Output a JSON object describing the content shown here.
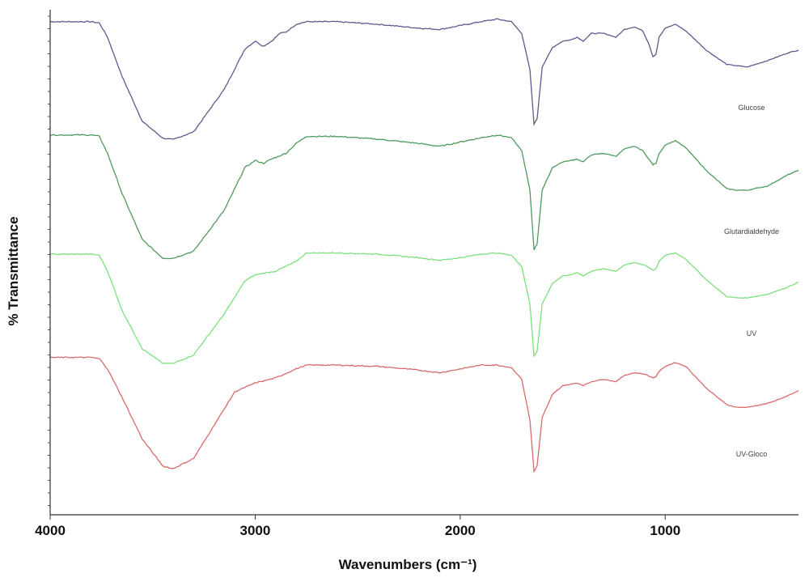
{
  "chart_data": {
    "type": "line",
    "title": "",
    "xlabel": "Wavenumbers (cm⁻¹)",
    "ylabel": "% Transmittance",
    "xlim": [
      4000,
      350
    ],
    "x_reversed": true,
    "x_ticks": [
      4000,
      3000,
      2000,
      1000
    ],
    "y_tick_labels_shown": false,
    "grid": false,
    "legend": "none",
    "series": [
      {
        "name": "Glucose",
        "color": "#5b5b8f",
        "points": [
          [
            4000,
            97
          ],
          [
            3800,
            97
          ],
          [
            3760,
            96
          ],
          [
            3720,
            85
          ],
          [
            3650,
            55
          ],
          [
            3550,
            20
          ],
          [
            3450,
            7
          ],
          [
            3400,
            6
          ],
          [
            3300,
            12
          ],
          [
            3150,
            45
          ],
          [
            3050,
            76
          ],
          [
            3000,
            82
          ],
          [
            2960,
            78
          ],
          [
            2920,
            82
          ],
          [
            2880,
            88
          ],
          [
            2850,
            89
          ],
          [
            2800,
            95
          ],
          [
            2750,
            97
          ],
          [
            2600,
            97
          ],
          [
            2400,
            95
          ],
          [
            2200,
            92
          ],
          [
            2100,
            91
          ],
          [
            2000,
            94
          ],
          [
            1900,
            97
          ],
          [
            1820,
            99
          ],
          [
            1750,
            97
          ],
          [
            1700,
            88
          ],
          [
            1660,
            60
          ],
          [
            1640,
            18
          ],
          [
            1625,
            22
          ],
          [
            1600,
            62
          ],
          [
            1550,
            77
          ],
          [
            1500,
            82
          ],
          [
            1460,
            83
          ],
          [
            1430,
            85
          ],
          [
            1400,
            82
          ],
          [
            1360,
            88
          ],
          [
            1300,
            88
          ],
          [
            1240,
            85
          ],
          [
            1200,
            91
          ],
          [
            1150,
            93
          ],
          [
            1110,
            90
          ],
          [
            1080,
            80
          ],
          [
            1060,
            70
          ],
          [
            1045,
            72
          ],
          [
            1030,
            85
          ],
          [
            1000,
            92
          ],
          [
            950,
            95
          ],
          [
            900,
            90
          ],
          [
            800,
            75
          ],
          [
            700,
            64
          ],
          [
            650,
            63
          ],
          [
            600,
            62
          ],
          [
            500,
            67
          ],
          [
            400,
            73
          ],
          [
            350,
            75
          ]
        ]
      },
      {
        "name": "Glutardialdehyde",
        "color": "#4f9a5e",
        "points": [
          [
            4000,
            99
          ],
          [
            3800,
            99
          ],
          [
            3760,
            98
          ],
          [
            3720,
            86
          ],
          [
            3650,
            58
          ],
          [
            3550,
            25
          ],
          [
            3450,
            12
          ],
          [
            3400,
            12
          ],
          [
            3300,
            17
          ],
          [
            3150,
            46
          ],
          [
            3050,
            76
          ],
          [
            3000,
            81
          ],
          [
            2960,
            79
          ],
          [
            2920,
            82
          ],
          [
            2850,
            86
          ],
          [
            2800,
            93
          ],
          [
            2750,
            98
          ],
          [
            2600,
            98
          ],
          [
            2400,
            96
          ],
          [
            2200,
            93
          ],
          [
            2100,
            91
          ],
          [
            2000,
            94
          ],
          [
            1900,
            97
          ],
          [
            1820,
            99
          ],
          [
            1750,
            97
          ],
          [
            1700,
            88
          ],
          [
            1660,
            60
          ],
          [
            1640,
            18
          ],
          [
            1625,
            22
          ],
          [
            1600,
            60
          ],
          [
            1550,
            76
          ],
          [
            1500,
            80
          ],
          [
            1460,
            81
          ],
          [
            1430,
            82
          ],
          [
            1400,
            80
          ],
          [
            1360,
            85
          ],
          [
            1300,
            86
          ],
          [
            1240,
            84
          ],
          [
            1200,
            89
          ],
          [
            1150,
            91
          ],
          [
            1110,
            88
          ],
          [
            1080,
            82
          ],
          [
            1060,
            78
          ],
          [
            1045,
            79
          ],
          [
            1030,
            86
          ],
          [
            1000,
            92
          ],
          [
            950,
            95
          ],
          [
            900,
            90
          ],
          [
            800,
            74
          ],
          [
            700,
            61
          ],
          [
            650,
            60
          ],
          [
            600,
            60
          ],
          [
            500,
            63
          ],
          [
            400,
            71
          ],
          [
            350,
            74
          ]
        ]
      },
      {
        "name": "UV",
        "color": "#7ce07c",
        "points": [
          [
            4000,
            96
          ],
          [
            3800,
            96
          ],
          [
            3760,
            95
          ],
          [
            3720,
            82
          ],
          [
            3650,
            50
          ],
          [
            3550,
            18
          ],
          [
            3450,
            6
          ],
          [
            3400,
            6
          ],
          [
            3300,
            13
          ],
          [
            3150,
            47
          ],
          [
            3050,
            74
          ],
          [
            3000,
            79
          ],
          [
            2900,
            82
          ],
          [
            2800,
            90
          ],
          [
            2750,
            97
          ],
          [
            2600,
            97
          ],
          [
            2400,
            96
          ],
          [
            2200,
            93
          ],
          [
            2100,
            91
          ],
          [
            2000,
            93
          ],
          [
            1900,
            96
          ],
          [
            1820,
            97
          ],
          [
            1750,
            95
          ],
          [
            1700,
            86
          ],
          [
            1660,
            55
          ],
          [
            1640,
            12
          ],
          [
            1625,
            16
          ],
          [
            1600,
            55
          ],
          [
            1550,
            72
          ],
          [
            1500,
            78
          ],
          [
            1460,
            79
          ],
          [
            1430,
            81
          ],
          [
            1400,
            78
          ],
          [
            1360,
            82
          ],
          [
            1300,
            84
          ],
          [
            1240,
            82
          ],
          [
            1200,
            87
          ],
          [
            1150,
            89
          ],
          [
            1100,
            87
          ],
          [
            1060,
            83
          ],
          [
            1045,
            84
          ],
          [
            1030,
            90
          ],
          [
            1000,
            95
          ],
          [
            950,
            97
          ],
          [
            900,
            92
          ],
          [
            800,
            75
          ],
          [
            700,
            61
          ],
          [
            650,
            60
          ],
          [
            600,
            60
          ],
          [
            500,
            63
          ],
          [
            400,
            69
          ],
          [
            350,
            73
          ]
        ]
      },
      {
        "name": "UV-Gloco",
        "color": "#d96a6a",
        "points": [
          [
            4000,
            99
          ],
          [
            3800,
            99
          ],
          [
            3760,
            98
          ],
          [
            3720,
            90
          ],
          [
            3650,
            68
          ],
          [
            3550,
            35
          ],
          [
            3450,
            14
          ],
          [
            3400,
            12
          ],
          [
            3300,
            20
          ],
          [
            3200,
            46
          ],
          [
            3100,
            72
          ],
          [
            3000,
            79
          ],
          [
            2900,
            83
          ],
          [
            2800,
            90
          ],
          [
            2750,
            93
          ],
          [
            2600,
            93
          ],
          [
            2400,
            92
          ],
          [
            2200,
            89
          ],
          [
            2100,
            87
          ],
          [
            2000,
            90
          ],
          [
            1900,
            93
          ],
          [
            1820,
            93
          ],
          [
            1750,
            91
          ],
          [
            1700,
            82
          ],
          [
            1660,
            50
          ],
          [
            1640,
            10
          ],
          [
            1625,
            14
          ],
          [
            1600,
            52
          ],
          [
            1550,
            70
          ],
          [
            1500,
            77
          ],
          [
            1460,
            78
          ],
          [
            1430,
            79
          ],
          [
            1400,
            77
          ],
          [
            1360,
            80
          ],
          [
            1300,
            82
          ],
          [
            1240,
            80
          ],
          [
            1200,
            85
          ],
          [
            1150,
            87
          ],
          [
            1100,
            86
          ],
          [
            1060,
            83
          ],
          [
            1045,
            84
          ],
          [
            1030,
            88
          ],
          [
            1000,
            92
          ],
          [
            950,
            95
          ],
          [
            900,
            92
          ],
          [
            800,
            75
          ],
          [
            700,
            62
          ],
          [
            650,
            60
          ],
          [
            600,
            60
          ],
          [
            500,
            63
          ],
          [
            400,
            69
          ],
          [
            350,
            73
          ]
        ]
      }
    ]
  }
}
